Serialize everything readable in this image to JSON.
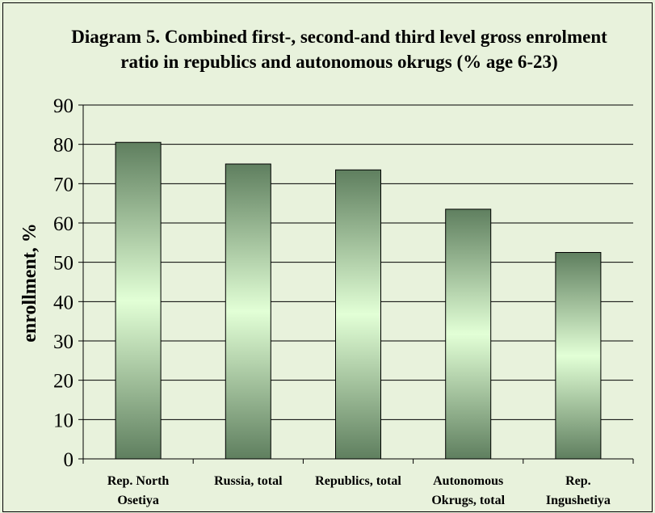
{
  "chart_data": {
    "type": "bar",
    "title": "Diagram 5. Combined first-, second-and third level gross enrolment ratio in republics and autonomous okrugs (% age 6-23)",
    "ylabel": "enrollment, %",
    "xlabel": "",
    "categories": [
      [
        "Rep. North",
        "Osetiya"
      ],
      [
        "Russia, total"
      ],
      [
        "Republics, total"
      ],
      [
        "Autonomous",
        "Okrugs, total"
      ],
      [
        "Rep.",
        "Ingushetiya"
      ]
    ],
    "values": [
      80.5,
      75,
      73.5,
      63.5,
      52.5
    ],
    "ylim": [
      0,
      90
    ],
    "yticks": [
      0,
      10,
      20,
      30,
      40,
      50,
      60,
      70,
      80,
      90
    ],
    "grid": true,
    "colors": {
      "bar_edge": "#5f7f5f",
      "bar_center": "#e2ffd6",
      "background": "#e8f2dc"
    }
  }
}
